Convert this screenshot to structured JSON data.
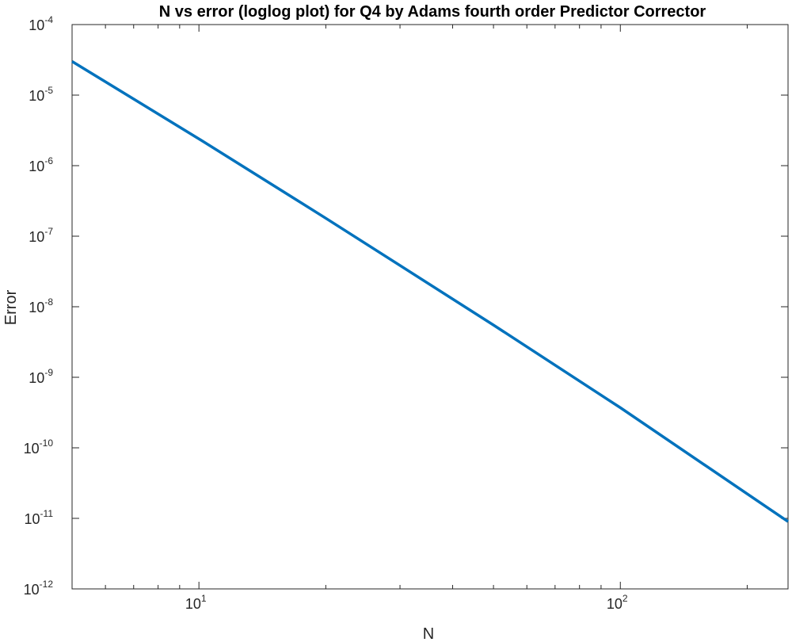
{
  "chart_data": {
    "type": "line",
    "title": "N vs error (loglog plot) for Q4 by Adams fourth order Predictor Corrector",
    "xlabel": "N",
    "ylabel": "Error",
    "xscale": "log",
    "yscale": "log",
    "xlim": [
      5,
      250
    ],
    "ylim": [
      1e-12,
      0.0001
    ],
    "x_ticks": [
      {
        "value": 10,
        "base": "10",
        "exp": "1"
      },
      {
        "value": 100,
        "base": "10",
        "exp": "2"
      }
    ],
    "y_ticks": [
      {
        "value": 0.0001,
        "base": "10",
        "exp": "-4"
      },
      {
        "value": 1e-05,
        "base": "10",
        "exp": "-5"
      },
      {
        "value": 1e-06,
        "base": "10",
        "exp": "-6"
      },
      {
        "value": 1e-07,
        "base": "10",
        "exp": "-7"
      },
      {
        "value": 1e-08,
        "base": "10",
        "exp": "-8"
      },
      {
        "value": 1e-09,
        "base": "10",
        "exp": "-9"
      },
      {
        "value": 1e-10,
        "base": "10",
        "exp": "-10"
      },
      {
        "value": 1e-11,
        "base": "10",
        "exp": "-11"
      },
      {
        "value": 1e-12,
        "base": "10",
        "exp": "-12"
      }
    ],
    "grid": false,
    "series": [
      {
        "color": "#0072BD",
        "x": [
          5,
          10,
          20,
          50,
          100,
          250
        ],
        "y": [
          3e-05,
          2.4e-06,
          1.8e-07,
          5.5e-09,
          3.7e-10,
          9e-12
        ]
      }
    ]
  }
}
